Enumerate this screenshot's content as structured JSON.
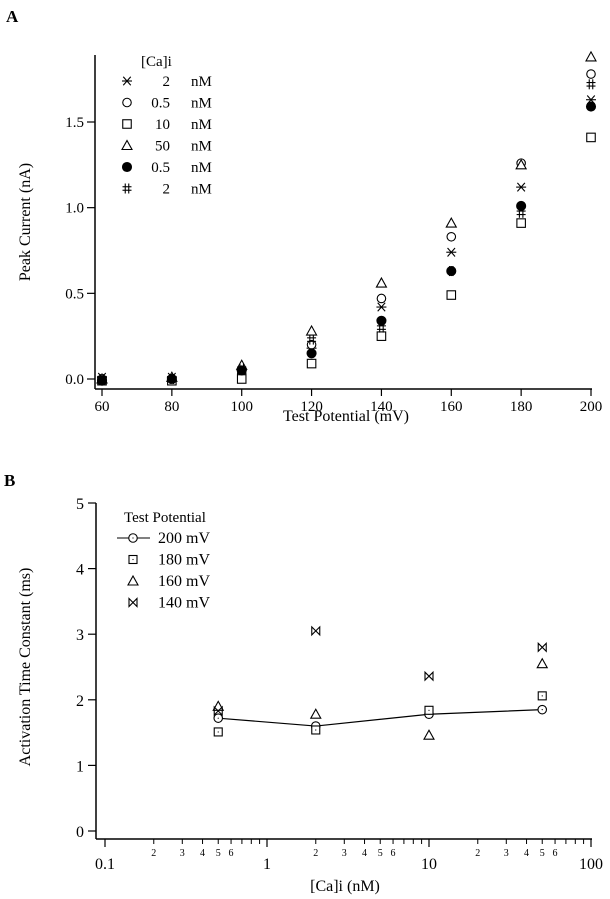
{
  "chart_data": [
    {
      "panel_label": "A",
      "type": "scatter",
      "xlabel": "Test Potential (mV)",
      "ylabel": "Peak Current (nA)",
      "xlim": [
        57,
        200
      ],
      "ylim": [
        -0.05,
        1.9
      ],
      "xticks": [
        60,
        80,
        100,
        120,
        140,
        160,
        180,
        200
      ],
      "yticks": [
        0.0,
        0.5,
        1.0,
        1.5
      ],
      "ytick_labels": [
        "0.0",
        "0.5",
        "1.0",
        "1.5"
      ],
      "grid": false,
      "legend_title": "[Ca]i",
      "legend_placement": "top-left",
      "x": [
        60,
        80,
        100,
        120,
        140,
        160,
        180,
        200
      ],
      "series": [
        {
          "name": "2 nM",
          "value_label": "2",
          "unit": "nM",
          "marker": "asterisk",
          "values": [
            0.01,
            0.01,
            0.05,
            0.18,
            0.42,
            0.74,
            1.12,
            1.63
          ]
        },
        {
          "name": "0.5 nM",
          "value_label": "0.5",
          "unit": "nM",
          "marker": "circle-open",
          "values": [
            0.0,
            0.0,
            0.03,
            0.2,
            0.47,
            0.83,
            1.26,
            1.78
          ]
        },
        {
          "name": "10 nM",
          "value_label": "10",
          "unit": "nM",
          "marker": "square-open",
          "values": [
            -0.01,
            -0.01,
            0.0,
            0.09,
            0.25,
            0.49,
            0.91,
            1.41
          ]
        },
        {
          "name": "50 nM",
          "value_label": "50",
          "unit": "nM",
          "marker": "triangle-open",
          "values": [
            0.0,
            0.01,
            0.08,
            0.28,
            0.56,
            0.91,
            1.25,
            1.88
          ]
        },
        {
          "name": "0.5 nM",
          "value_label": "0.5",
          "unit": "nM",
          "marker": "circle-filled",
          "values": [
            -0.01,
            0.0,
            0.05,
            0.15,
            0.34,
            0.63,
            1.01,
            1.59
          ]
        },
        {
          "name": "2 nM",
          "value_label": "2",
          "unit": "nM",
          "marker": "hash",
          "values": [
            0.0,
            0.0,
            0.06,
            0.23,
            0.3,
            0.63,
            0.97,
            1.72
          ]
        }
      ]
    },
    {
      "panel_label": "B",
      "type": "scatter",
      "xscale": "log",
      "xlabel": "[Ca]i (nM)",
      "ylabel": "Activation Time Constant (ms)",
      "xlim": [
        0.1,
        100
      ],
      "ylim": [
        -0.12,
        5
      ],
      "xticks_major": [
        0.1,
        1,
        10,
        100
      ],
      "xtick_major_labels": [
        "0.1",
        "1",
        "10",
        "100"
      ],
      "xtick_minor_labels": [
        "2",
        "3",
        "4",
        "5",
        "6"
      ],
      "yticks": [
        0,
        1,
        2,
        3,
        4,
        5
      ],
      "grid": false,
      "legend_title": "Test Potential",
      "legend_placement": "top-left",
      "x": [
        0.5,
        2,
        10,
        50
      ],
      "series": [
        {
          "name": "200 mV",
          "marker": "circle-open-line",
          "line": true,
          "values": [
            1.72,
            1.6,
            1.78,
            1.85
          ]
        },
        {
          "name": "180 mV",
          "marker": "square-dot",
          "line": false,
          "values": [
            1.51,
            1.54,
            1.84,
            2.06
          ]
        },
        {
          "name": "160 mV",
          "marker": "triangle-open",
          "line": false,
          "values": [
            1.9,
            1.78,
            1.46,
            2.55
          ]
        },
        {
          "name": "140 mV",
          "marker": "bowtie",
          "line": false,
          "values": [
            1.83,
            3.05,
            2.36,
            2.8
          ]
        }
      ]
    }
  ]
}
